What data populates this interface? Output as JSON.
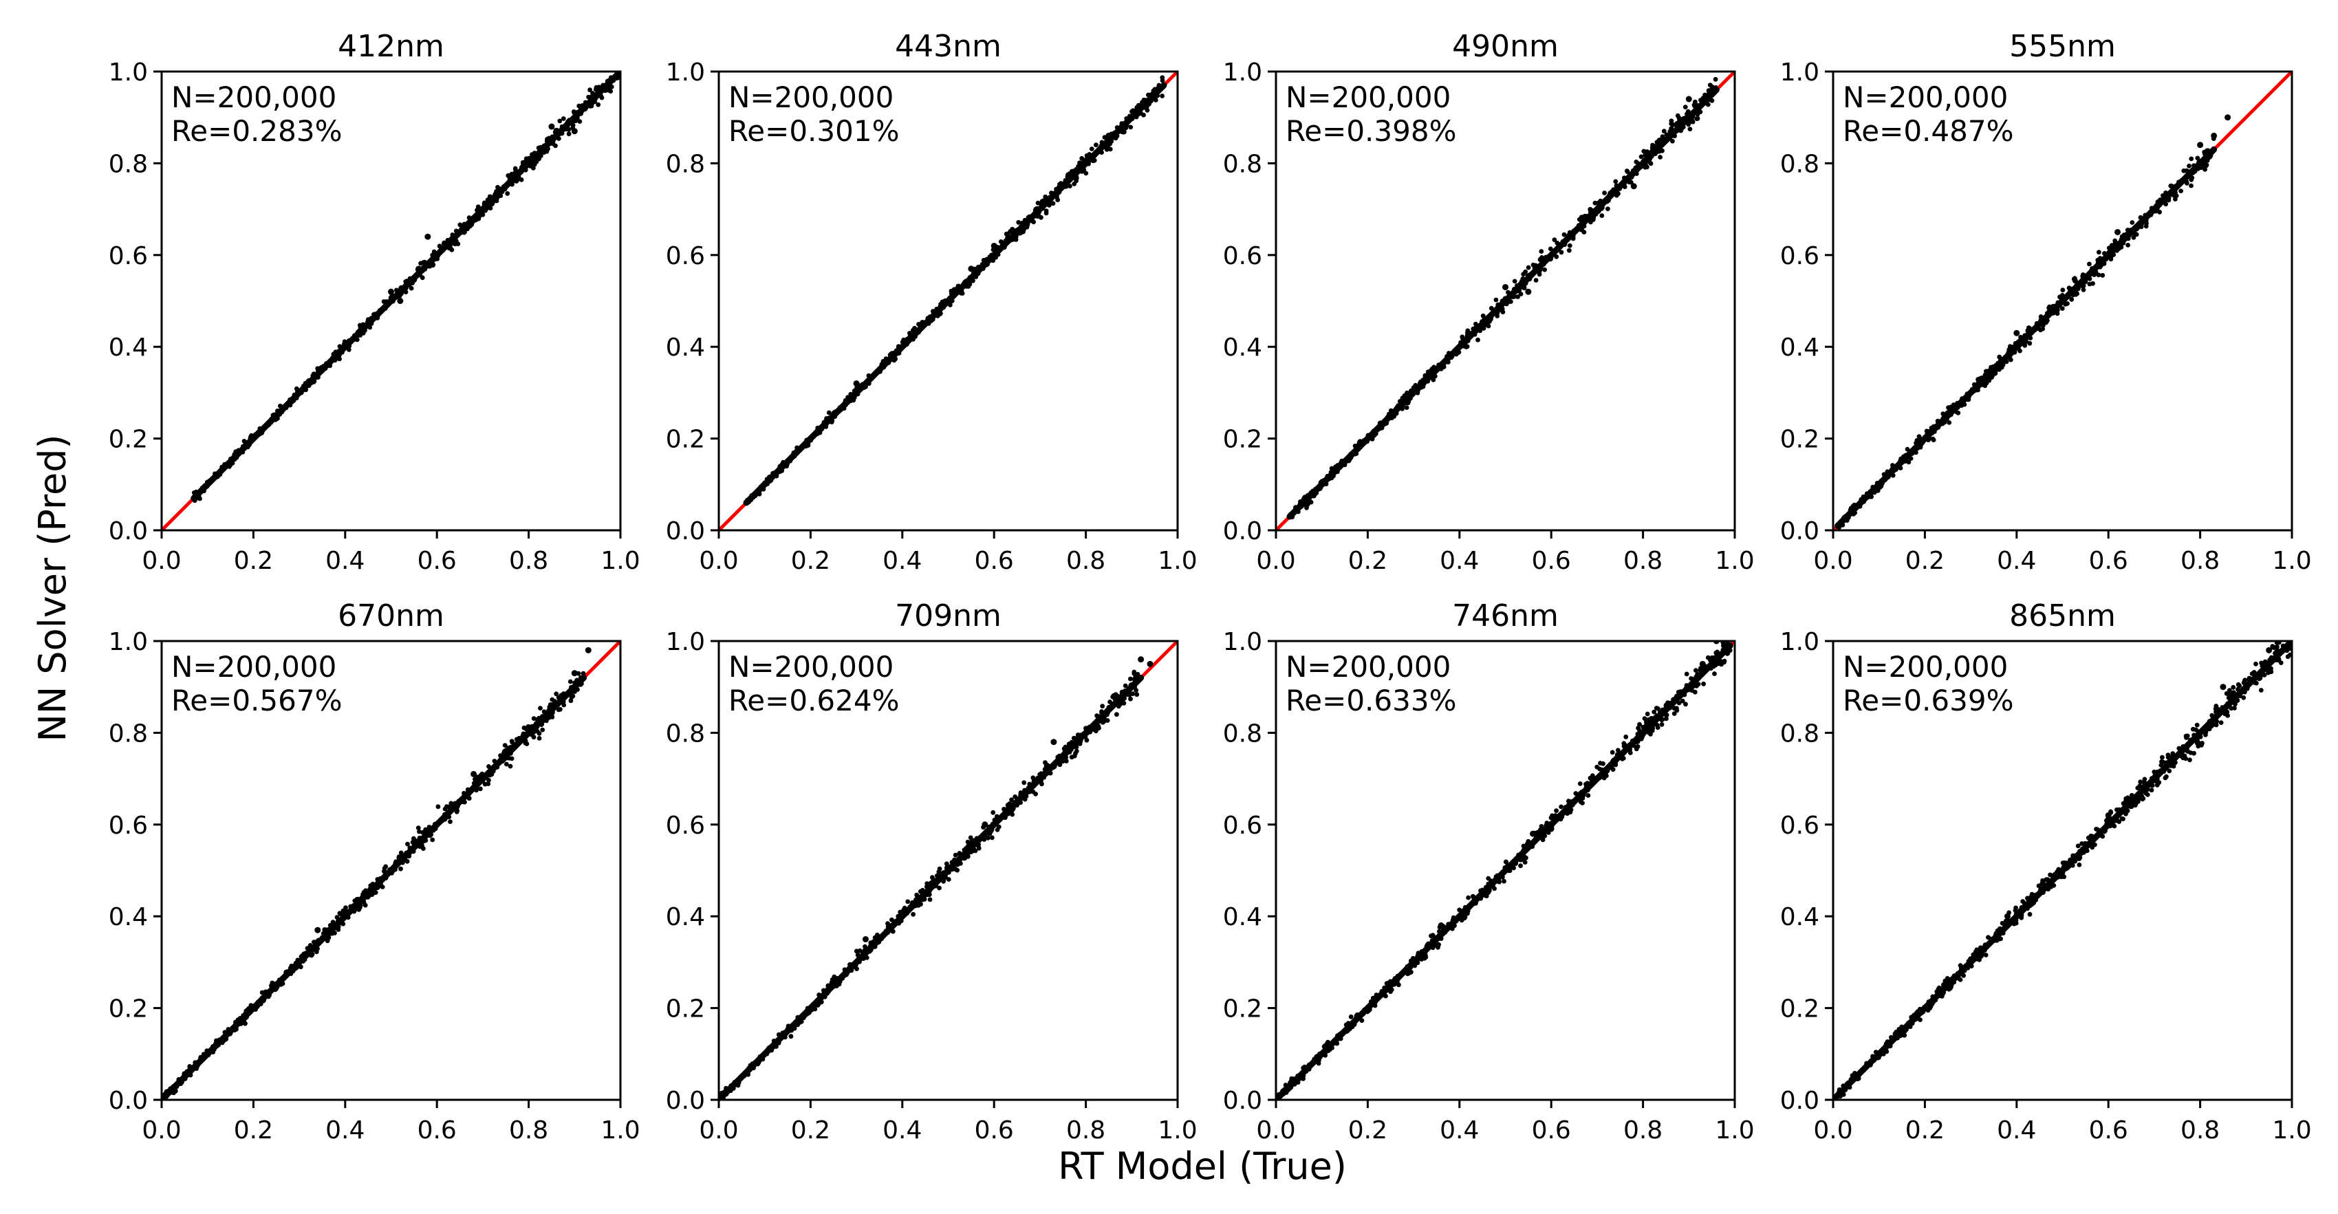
{
  "figure": {
    "xlabel": "RT Model (True)",
    "ylabel": "NN Solver (Pred)"
  },
  "colors": {
    "points": "#000000",
    "reference_line": "#ff0000",
    "axes": "#000000",
    "background": "#ffffff"
  },
  "chart_data": [
    {
      "type": "scatter",
      "title": "412nm",
      "n_label": "N=200,000",
      "re_label": "Re=0.283%",
      "reference_line": "y = x",
      "xlim": [
        0,
        1.0
      ],
      "ylim": [
        0,
        1.0
      ],
      "xticks": [
        "0.0",
        "0.2",
        "0.4",
        "0.6",
        "0.8",
        "1.0"
      ],
      "yticks": [
        "0.0",
        "0.2",
        "0.4",
        "0.6",
        "0.8",
        "1.0"
      ],
      "x_range": [
        0.07,
        1.0
      ],
      "spread": 0.006,
      "outliers": [
        [
          0.5,
          0.52
        ],
        [
          0.52,
          0.5
        ],
        [
          0.58,
          0.64
        ],
        [
          0.85,
          0.88
        ],
        [
          0.9,
          0.87
        ]
      ]
    },
    {
      "type": "scatter",
      "title": "443nm",
      "n_label": "N=200,000",
      "re_label": "Re=0.301%",
      "reference_line": "y = x",
      "xlim": [
        0,
        1.0
      ],
      "ylim": [
        0,
        1.0
      ],
      "xticks": [
        "0.0",
        "0.2",
        "0.4",
        "0.6",
        "0.8",
        "1.0"
      ],
      "yticks": [
        "0.0",
        "0.2",
        "0.4",
        "0.6",
        "0.8",
        "1.0"
      ],
      "x_range": [
        0.06,
        0.97
      ],
      "spread": 0.006,
      "outliers": [
        [
          0.3,
          0.32
        ],
        [
          0.55,
          0.57
        ],
        [
          0.6,
          0.62
        ],
        [
          0.85,
          0.86
        ]
      ]
    },
    {
      "type": "scatter",
      "title": "490nm",
      "n_label": "N=200,000",
      "re_label": "Re=0.398%",
      "reference_line": "y = x",
      "xlim": [
        0,
        1.0
      ],
      "ylim": [
        0,
        1.0
      ],
      "xticks": [
        "0.0",
        "0.2",
        "0.4",
        "0.6",
        "0.8",
        "1.0"
      ],
      "yticks": [
        "0.0",
        "0.2",
        "0.4",
        "0.6",
        "0.8",
        "1.0"
      ],
      "x_range": [
        0.03,
        0.96
      ],
      "spread": 0.008,
      "outliers": [
        [
          0.5,
          0.53
        ],
        [
          0.55,
          0.52
        ],
        [
          0.78,
          0.75
        ],
        [
          0.9,
          0.94
        ]
      ]
    },
    {
      "type": "scatter",
      "title": "555nm",
      "n_label": "N=200,000",
      "re_label": "Re=0.487%",
      "reference_line": "y = x",
      "xlim": [
        0,
        1.0
      ],
      "ylim": [
        0,
        1.0
      ],
      "xticks": [
        "0.0",
        "0.2",
        "0.4",
        "0.6",
        "0.8",
        "1.0"
      ],
      "yticks": [
        "0.0",
        "0.2",
        "0.4",
        "0.6",
        "0.8",
        "1.0"
      ],
      "x_range": [
        0.01,
        0.83
      ],
      "spread": 0.008,
      "outliers": [
        [
          0.4,
          0.43
        ],
        [
          0.62,
          0.65
        ],
        [
          0.8,
          0.84
        ],
        [
          0.83,
          0.86
        ],
        [
          0.86,
          0.9
        ]
      ]
    },
    {
      "type": "scatter",
      "title": "670nm",
      "n_label": "N=200,000",
      "re_label": "Re=0.567%",
      "reference_line": "y = x",
      "xlim": [
        0,
        1.0
      ],
      "ylim": [
        0,
        1.0
      ],
      "xticks": [
        "0.0",
        "0.2",
        "0.4",
        "0.6",
        "0.8",
        "1.0"
      ],
      "yticks": [
        "0.0",
        "0.2",
        "0.4",
        "0.6",
        "0.8",
        "1.0"
      ],
      "x_range": [
        0.0,
        0.92
      ],
      "spread": 0.008,
      "outliers": [
        [
          0.34,
          0.37
        ],
        [
          0.68,
          0.71
        ],
        [
          0.93,
          0.98
        ],
        [
          0.9,
          0.93
        ]
      ]
    },
    {
      "type": "scatter",
      "title": "709nm",
      "n_label": "N=200,000",
      "re_label": "Re=0.624%",
      "reference_line": "y = x",
      "xlim": [
        0,
        1.0
      ],
      "ylim": [
        0,
        1.0
      ],
      "xticks": [
        "0.0",
        "0.2",
        "0.4",
        "0.6",
        "0.8",
        "1.0"
      ],
      "yticks": [
        "0.0",
        "0.2",
        "0.4",
        "0.6",
        "0.8",
        "1.0"
      ],
      "x_range": [
        0.0,
        0.92
      ],
      "spread": 0.008,
      "outliers": [
        [
          0.32,
          0.35
        ],
        [
          0.58,
          0.6
        ],
        [
          0.73,
          0.78
        ],
        [
          0.92,
          0.96
        ],
        [
          0.94,
          0.95
        ]
      ]
    },
    {
      "type": "scatter",
      "title": "746nm",
      "n_label": "N=200,000",
      "re_label": "Re=0.633%",
      "reference_line": "y = x",
      "xlim": [
        0,
        1.0
      ],
      "ylim": [
        0,
        1.0
      ],
      "xticks": [
        "0.0",
        "0.2",
        "0.4",
        "0.6",
        "0.8",
        "1.0"
      ],
      "yticks": [
        "0.0",
        "0.2",
        "0.4",
        "0.6",
        "0.8",
        "1.0"
      ],
      "x_range": [
        0.0,
        0.99
      ],
      "spread": 0.008,
      "outliers": [
        [
          0.36,
          0.38
        ],
        [
          0.56,
          0.58
        ],
        [
          0.93,
          0.95
        ],
        [
          0.96,
          1.0
        ]
      ]
    },
    {
      "type": "scatter",
      "title": "865nm",
      "n_label": "N=200,000",
      "re_label": "Re=0.639%",
      "reference_line": "y = x",
      "xlim": [
        0,
        1.0
      ],
      "ylim": [
        0,
        1.0
      ],
      "xticks": [
        "0.0",
        "0.2",
        "0.4",
        "0.6",
        "0.8",
        "1.0"
      ],
      "yticks": [
        "0.0",
        "0.2",
        "0.4",
        "0.6",
        "0.8",
        "1.0"
      ],
      "x_range": [
        0.0,
        1.0
      ],
      "spread": 0.009,
      "outliers": [
        [
          0.38,
          0.4
        ],
        [
          0.6,
          0.62
        ],
        [
          0.85,
          0.9
        ],
        [
          0.95,
          0.98
        ],
        [
          0.97,
          0.96
        ]
      ]
    }
  ]
}
